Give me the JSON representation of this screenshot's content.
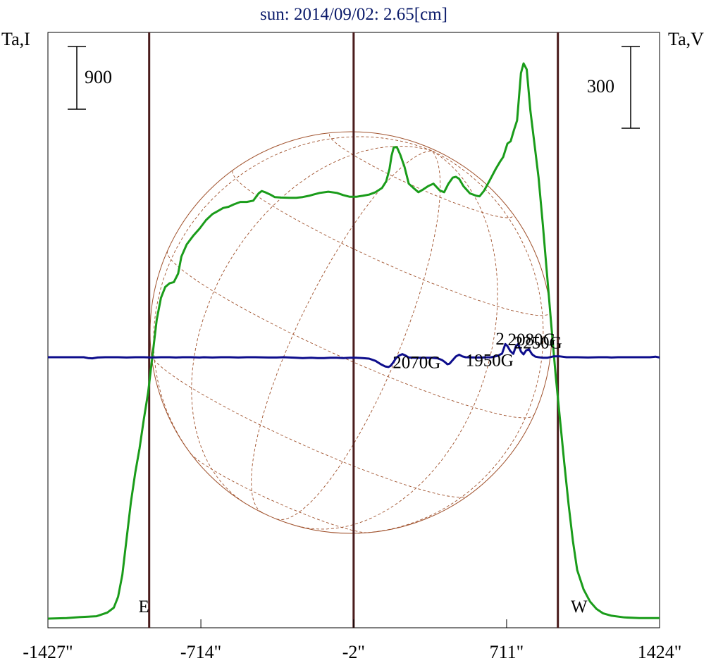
{
  "chart_data": {
    "type": "line",
    "title": "sun: 2014/09/02: 2.65[cm]",
    "ylabel_left": "Ta,I",
    "ylabel_right": "Ta,V",
    "scale_left": "900",
    "scale_right": "300",
    "xlim": [
      -1427,
      1424
    ],
    "x_ticks": [
      {
        "value": -1427,
        "label": "-1427\""
      },
      {
        "value": -714,
        "label": "-714\""
      },
      {
        "value": -2,
        "label": "-2\""
      },
      {
        "value": 711,
        "label": "711\""
      },
      {
        "value": 1424,
        "label": "1424\""
      }
    ],
    "vertical_lines": [
      {
        "name": "east-limb-line",
        "x": -955
      },
      {
        "name": "center-line",
        "x": -2
      },
      {
        "name": "west-limb-line",
        "x": 950
      }
    ],
    "limb_labels": [
      {
        "text": "E",
        "x": -1005
      },
      {
        "text": "W",
        "x": 1010
      }
    ],
    "disk_color": "#a0522d",
    "series": [
      {
        "name": "I",
        "color": "#1a9c1a",
        "points": [
          [
            -1427,
            0
          ],
          [
            -1340,
            2
          ],
          [
            -1280,
            6
          ],
          [
            -1200,
            10
          ],
          [
            -1150,
            25
          ],
          [
            -1120,
            45
          ],
          [
            -1100,
            90
          ],
          [
            -1080,
            180
          ],
          [
            -1060,
            330
          ],
          [
            -1040,
            480
          ],
          [
            -1020,
            600
          ],
          [
            -1000,
            700
          ],
          [
            -980,
            820
          ],
          [
            -960,
            930
          ],
          [
            -940,
            1080
          ],
          [
            -920,
            1230
          ],
          [
            -900,
            1320
          ],
          [
            -880,
            1365
          ],
          [
            -860,
            1380
          ],
          [
            -840,
            1385
          ],
          [
            -820,
            1420
          ],
          [
            -805,
            1490
          ],
          [
            -780,
            1540
          ],
          [
            -750,
            1575
          ],
          [
            -720,
            1605
          ],
          [
            -690,
            1640
          ],
          [
            -660,
            1665
          ],
          [
            -640,
            1675
          ],
          [
            -610,
            1690
          ],
          [
            -585,
            1695
          ],
          [
            -560,
            1705
          ],
          [
            -530,
            1715
          ],
          [
            -500,
            1715
          ],
          [
            -470,
            1720
          ],
          [
            -445,
            1750
          ],
          [
            -430,
            1760
          ],
          [
            -415,
            1755
          ],
          [
            -390,
            1745
          ],
          [
            -370,
            1735
          ],
          [
            -340,
            1733
          ],
          [
            -300,
            1732
          ],
          [
            -270,
            1732
          ],
          [
            -240,
            1735
          ],
          [
            -210,
            1740
          ],
          [
            -190,
            1745
          ],
          [
            -160,
            1752
          ],
          [
            -120,
            1757
          ],
          [
            -80,
            1752
          ],
          [
            -50,
            1743
          ],
          [
            -20,
            1736
          ],
          [
            10,
            1736
          ],
          [
            40,
            1740
          ],
          [
            70,
            1745
          ],
          [
            100,
            1755
          ],
          [
            130,
            1772
          ],
          [
            150,
            1800
          ],
          [
            165,
            1850
          ],
          [
            175,
            1905
          ],
          [
            185,
            1940
          ],
          [
            200,
            1940
          ],
          [
            215,
            1910
          ],
          [
            235,
            1860
          ],
          [
            255,
            1790
          ],
          [
            280,
            1770
          ],
          [
            300,
            1755
          ],
          [
            320,
            1765
          ],
          [
            345,
            1780
          ],
          [
            370,
            1790
          ],
          [
            400,
            1762
          ],
          [
            420,
            1755
          ],
          [
            440,
            1790
          ],
          [
            460,
            1815
          ],
          [
            475,
            1818
          ],
          [
            490,
            1810
          ],
          [
            510,
            1780
          ],
          [
            540,
            1750
          ],
          [
            570,
            1740
          ],
          [
            585,
            1738
          ],
          [
            605,
            1760
          ],
          [
            630,
            1800
          ],
          [
            660,
            1850
          ],
          [
            680,
            1880
          ],
          [
            695,
            1900
          ],
          [
            715,
            1955
          ],
          [
            730,
            1965
          ],
          [
            745,
            2010
          ],
          [
            760,
            2050
          ],
          [
            778,
            2245
          ],
          [
            790,
            2285
          ],
          [
            805,
            2260
          ],
          [
            822,
            2090
          ],
          [
            840,
            1960
          ],
          [
            860,
            1815
          ],
          [
            880,
            1620
          ],
          [
            900,
            1410
          ],
          [
            920,
            1200
          ],
          [
            940,
            1000
          ],
          [
            960,
            820
          ],
          [
            980,
            640
          ],
          [
            1000,
            470
          ],
          [
            1020,
            320
          ],
          [
            1040,
            200
          ],
          [
            1070,
            120
          ],
          [
            1100,
            70
          ],
          [
            1130,
            40
          ],
          [
            1160,
            22
          ],
          [
            1200,
            12
          ],
          [
            1260,
            5
          ],
          [
            1330,
            2
          ],
          [
            1424,
            2
          ]
        ]
      },
      {
        "name": "V",
        "color": "#0d0d8c",
        "points": [
          [
            -1427,
            0
          ],
          [
            -1300,
            0
          ],
          [
            -1260,
            0
          ],
          [
            -1240,
            -3
          ],
          [
            -1220,
            -4
          ],
          [
            -1195,
            -1
          ],
          [
            -1160,
            0
          ],
          [
            -1100,
            0
          ],
          [
            -1060,
            -1
          ],
          [
            -1020,
            0
          ],
          [
            -980,
            0
          ],
          [
            -940,
            -1
          ],
          [
            -900,
            0
          ],
          [
            -860,
            0
          ],
          [
            -830,
            -1
          ],
          [
            -800,
            0
          ],
          [
            -760,
            0
          ],
          [
            -720,
            -1
          ],
          [
            -700,
            0
          ],
          [
            -660,
            -1
          ],
          [
            -620,
            0
          ],
          [
            -580,
            0
          ],
          [
            -540,
            -1
          ],
          [
            -500,
            0
          ],
          [
            -460,
            0
          ],
          [
            -400,
            -1
          ],
          [
            -360,
            -1
          ],
          [
            -330,
            0
          ],
          [
            -300,
            -1
          ],
          [
            -270,
            -2
          ],
          [
            -240,
            -3
          ],
          [
            -200,
            -2
          ],
          [
            -170,
            -3
          ],
          [
            -140,
            -3
          ],
          [
            -110,
            -2
          ],
          [
            -80,
            -2
          ],
          [
            -50,
            -3
          ],
          [
            -20,
            -2
          ],
          [
            10,
            -2
          ],
          [
            40,
            -3
          ],
          [
            70,
            -5
          ],
          [
            100,
            -13
          ],
          [
            125,
            -25
          ],
          [
            145,
            -33
          ],
          [
            160,
            -35
          ],
          [
            170,
            -31
          ],
          [
            183,
            -18
          ],
          [
            195,
            -4
          ],
          [
            210,
            6
          ],
          [
            225,
            11
          ],
          [
            240,
            6
          ],
          [
            255,
            -1
          ],
          [
            280,
            -2
          ],
          [
            320,
            -2
          ],
          [
            360,
            -2
          ],
          [
            390,
            -4
          ],
          [
            410,
            -10
          ],
          [
            425,
            -18
          ],
          [
            435,
            -25
          ],
          [
            445,
            -23
          ],
          [
            460,
            -10
          ],
          [
            475,
            3
          ],
          [
            490,
            9
          ],
          [
            505,
            3
          ],
          [
            520,
            0
          ],
          [
            560,
            -1
          ],
          [
            600,
            -1
          ],
          [
            640,
            0
          ],
          [
            670,
            5
          ],
          [
            690,
            13
          ],
          [
            705,
            47
          ],
          [
            715,
            40
          ],
          [
            728,
            22
          ],
          [
            742,
            12
          ],
          [
            755,
            40
          ],
          [
            765,
            47
          ],
          [
            778,
            20
          ],
          [
            790,
            10
          ],
          [
            802,
            24
          ],
          [
            815,
            28
          ],
          [
            830,
            10
          ],
          [
            845,
            2
          ],
          [
            860,
            0
          ],
          [
            880,
            -2
          ],
          [
            900,
            -2
          ],
          [
            930,
            3
          ],
          [
            960,
            3
          ],
          [
            990,
            0
          ],
          [
            1040,
            0
          ],
          [
            1090,
            -1
          ],
          [
            1140,
            0
          ],
          [
            1180,
            0
          ],
          [
            1200,
            -1
          ],
          [
            1230,
            0
          ],
          [
            1300,
            0
          ],
          [
            1380,
            0
          ],
          [
            1405,
            2
          ],
          [
            1424,
            -1
          ]
        ]
      }
    ],
    "annotations": [
      {
        "text": "2070G",
        "x": 180,
        "y": -39
      },
      {
        "text": "1950G",
        "x": 520,
        "y": -31
      },
      {
        "text": "2",
        "x": 660,
        "y": 45
      },
      {
        "text": "2080G",
        "x": 716,
        "y": 43
      },
      {
        "text": "2250G",
        "x": 746,
        "y": 32
      }
    ]
  }
}
